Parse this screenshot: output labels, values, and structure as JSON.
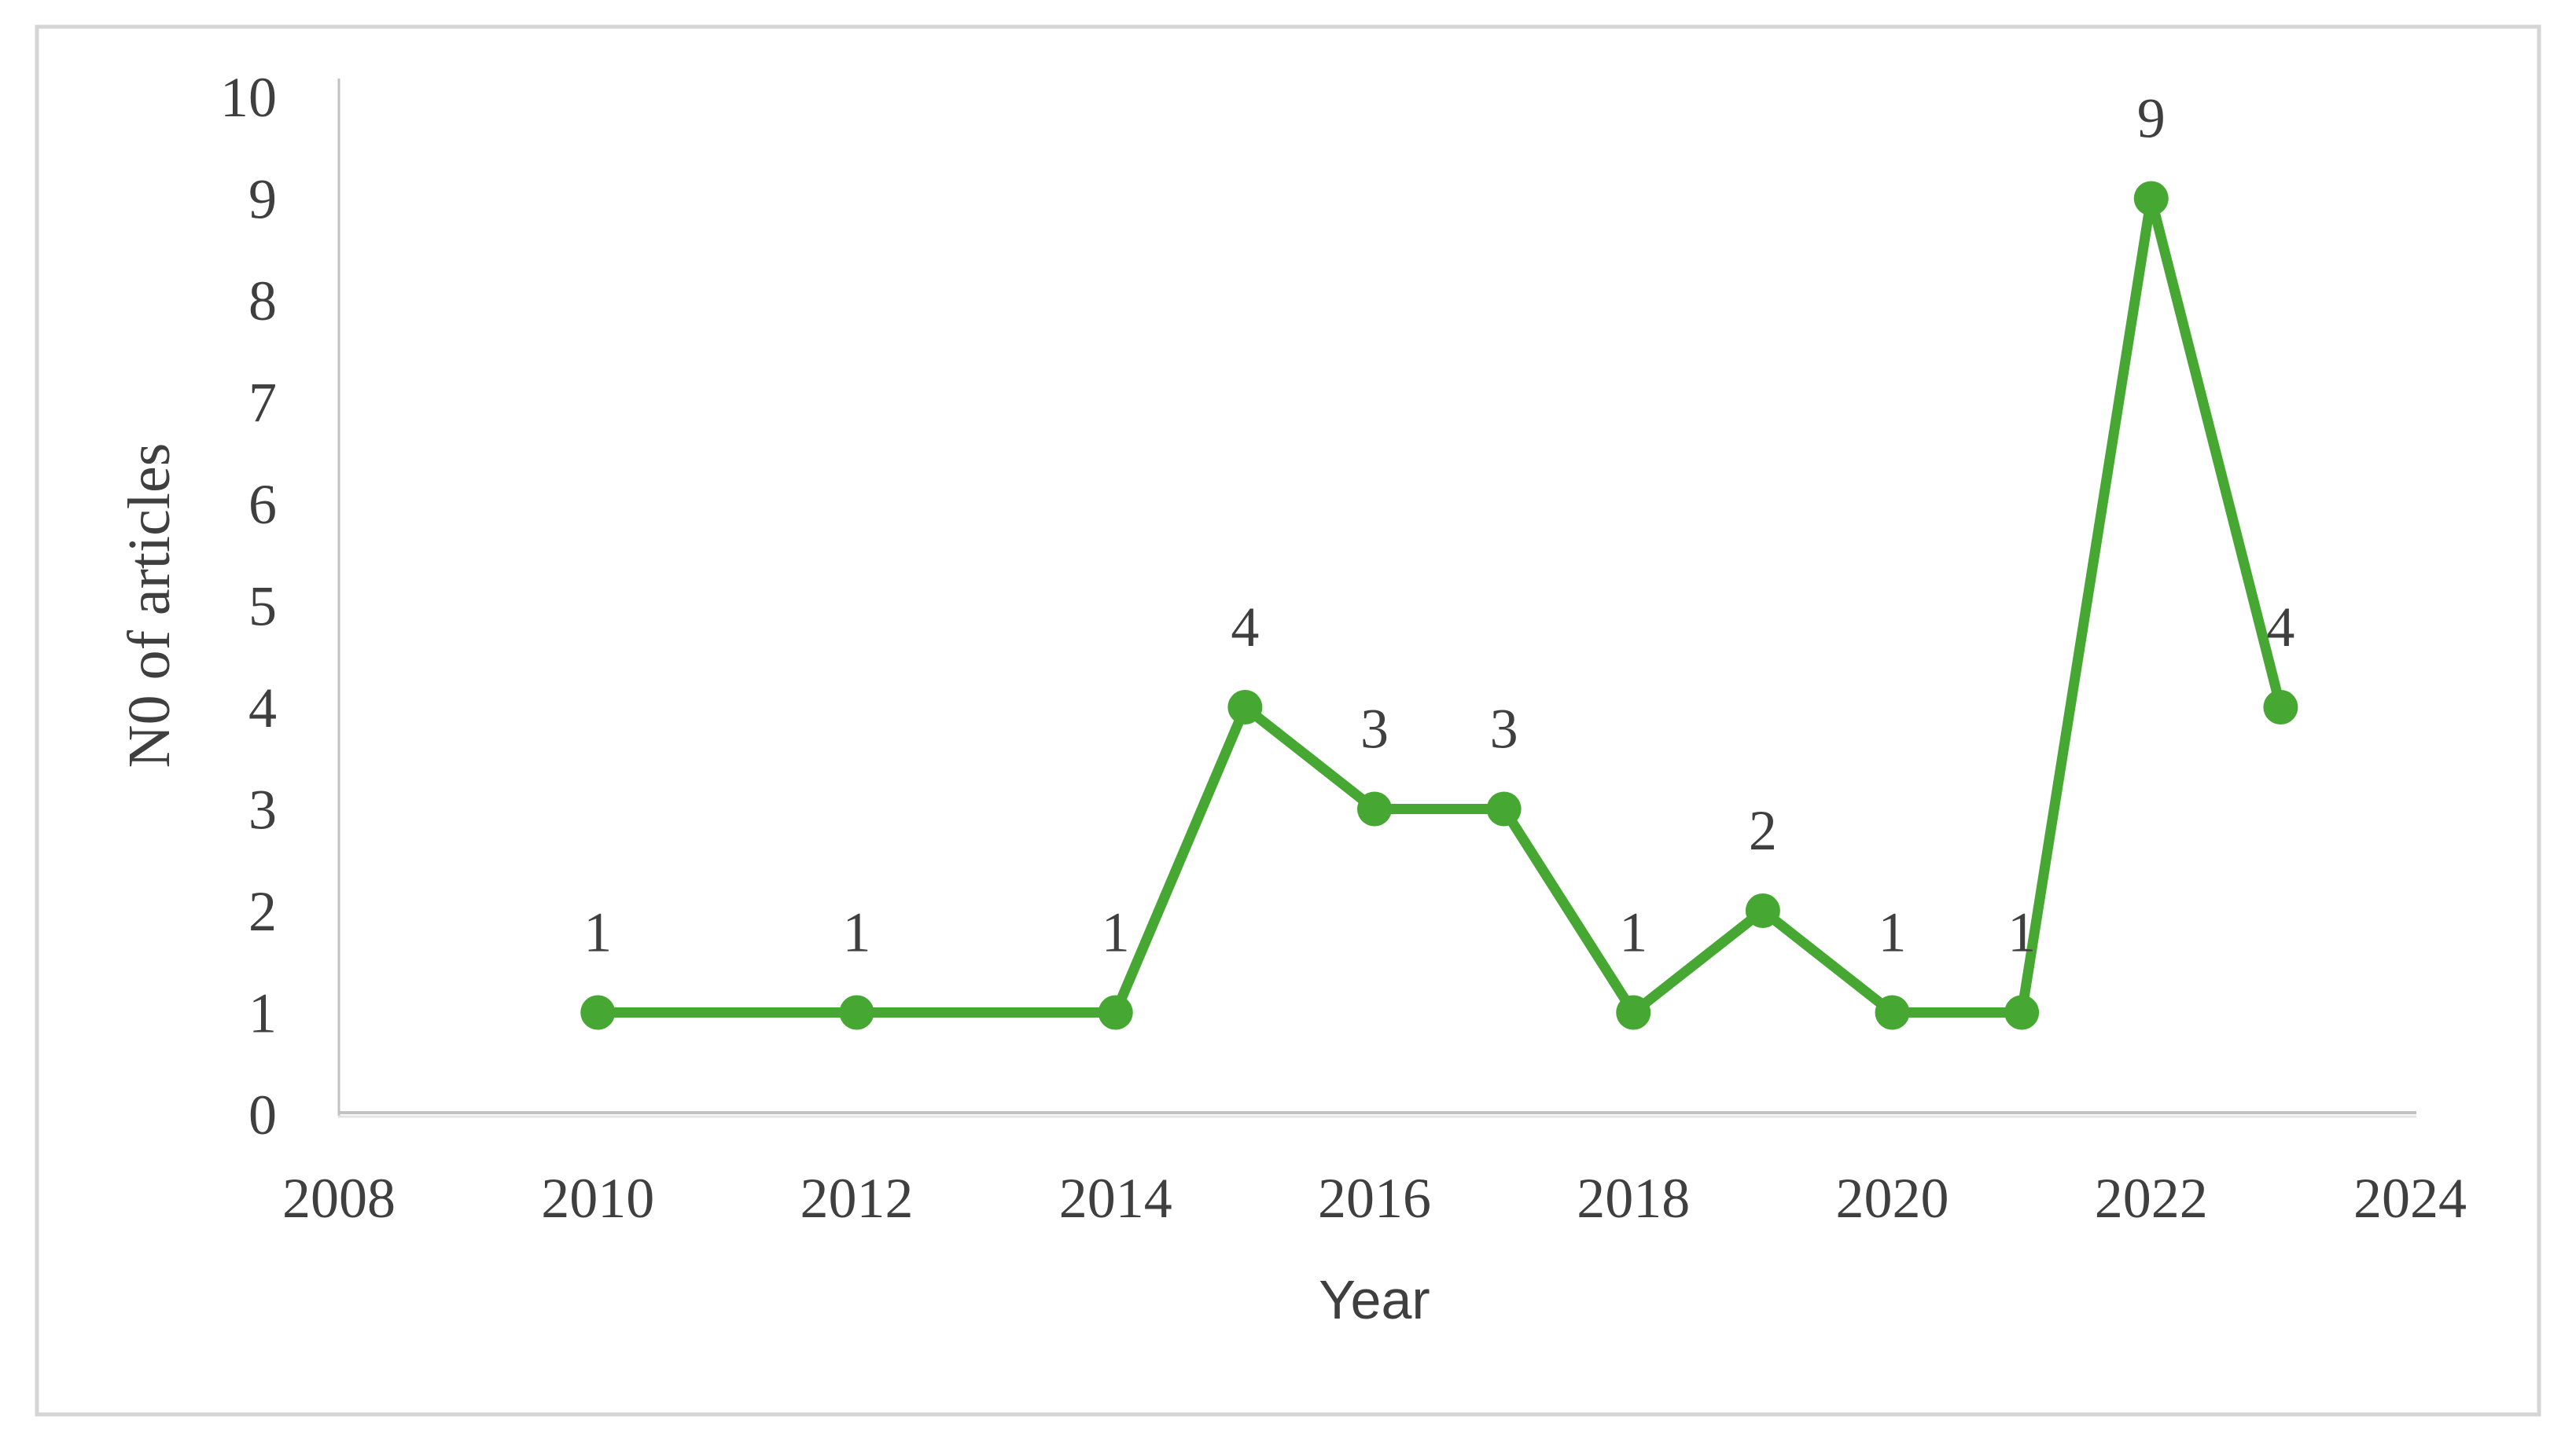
{
  "figure": {
    "background": "#ffffff",
    "border_color": "#d5d5d5"
  },
  "chart_data": {
    "type": "line",
    "title": "",
    "xlabel": "Year",
    "ylabel": "N0 of articles",
    "x": [
      2010,
      2012,
      2014,
      2015,
      2016,
      2017,
      2018,
      2019,
      2020,
      2021,
      2022,
      2023
    ],
    "values": [
      1,
      1,
      1,
      4,
      3,
      3,
      1,
      2,
      1,
      1,
      9,
      4
    ],
    "data_labels": [
      "1",
      "1",
      "1",
      "4",
      "3",
      "3",
      "1",
      "2",
      "1",
      "1",
      "9",
      "4"
    ],
    "x_ticks": [
      2008,
      2010,
      2012,
      2014,
      2016,
      2018,
      2020,
      2022,
      2024
    ],
    "y_ticks": [
      0,
      1,
      2,
      3,
      4,
      5,
      6,
      7,
      8,
      9,
      10
    ],
    "xlim": [
      2008,
      2024
    ],
    "ylim": [
      0,
      10
    ],
    "grid": false,
    "legend_position": "none",
    "series_name": "N0 of articles",
    "series_color": "#46a832",
    "text_color": "#3f3f3f",
    "axis_line_color": "#c2c2c2",
    "axis_shadow_color": "#e3e3e3",
    "marker": "circle"
  }
}
